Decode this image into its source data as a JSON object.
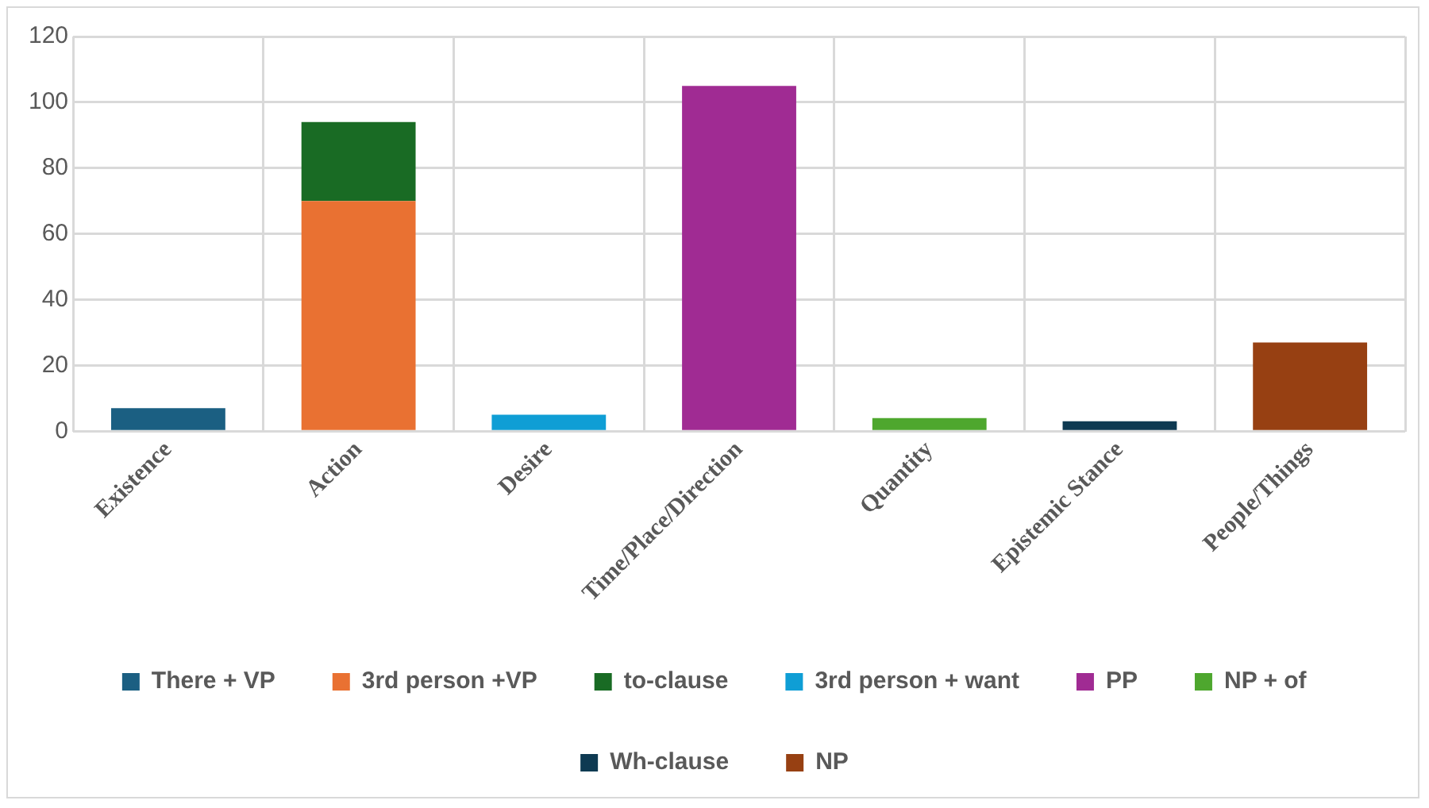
{
  "chart_data": {
    "type": "bar",
    "stacked": true,
    "grid": true,
    "legend": "bottom",
    "categories": [
      "Existence",
      "Action",
      "Desire",
      "Time/Place/Direction",
      "Quantity",
      "Epistemic Stance",
      "People/Things"
    ],
    "ylim": [
      0,
      120
    ],
    "yticks": [
      0,
      20,
      40,
      60,
      80,
      100,
      120
    ],
    "series": [
      {
        "name": "There + VP",
        "color": "#1b5f82",
        "values": [
          7,
          null,
          null,
          null,
          null,
          null,
          null
        ]
      },
      {
        "name": "3rd person +VP",
        "color": "#e97132",
        "values": [
          null,
          70,
          null,
          null,
          null,
          null,
          null
        ]
      },
      {
        "name": "to-clause",
        "color": "#196b24",
        "values": [
          null,
          24,
          null,
          null,
          null,
          null,
          null
        ]
      },
      {
        "name": "3rd person + want",
        "color": "#0f9ed5",
        "values": [
          null,
          null,
          5,
          null,
          null,
          null,
          null
        ]
      },
      {
        "name": "PP",
        "color": "#a02b93",
        "values": [
          null,
          null,
          null,
          105,
          null,
          null,
          null
        ]
      },
      {
        "name": "NP + of",
        "color": "#4ea72e",
        "values": [
          null,
          null,
          null,
          null,
          4,
          null,
          null
        ]
      },
      {
        "name": "Wh-clause",
        "color": "#0e3a52",
        "values": [
          null,
          null,
          null,
          null,
          null,
          3,
          null
        ]
      },
      {
        "name": "NP",
        "color": "#974012",
        "values": [
          null,
          null,
          null,
          null,
          null,
          null,
          27
        ]
      }
    ]
  }
}
